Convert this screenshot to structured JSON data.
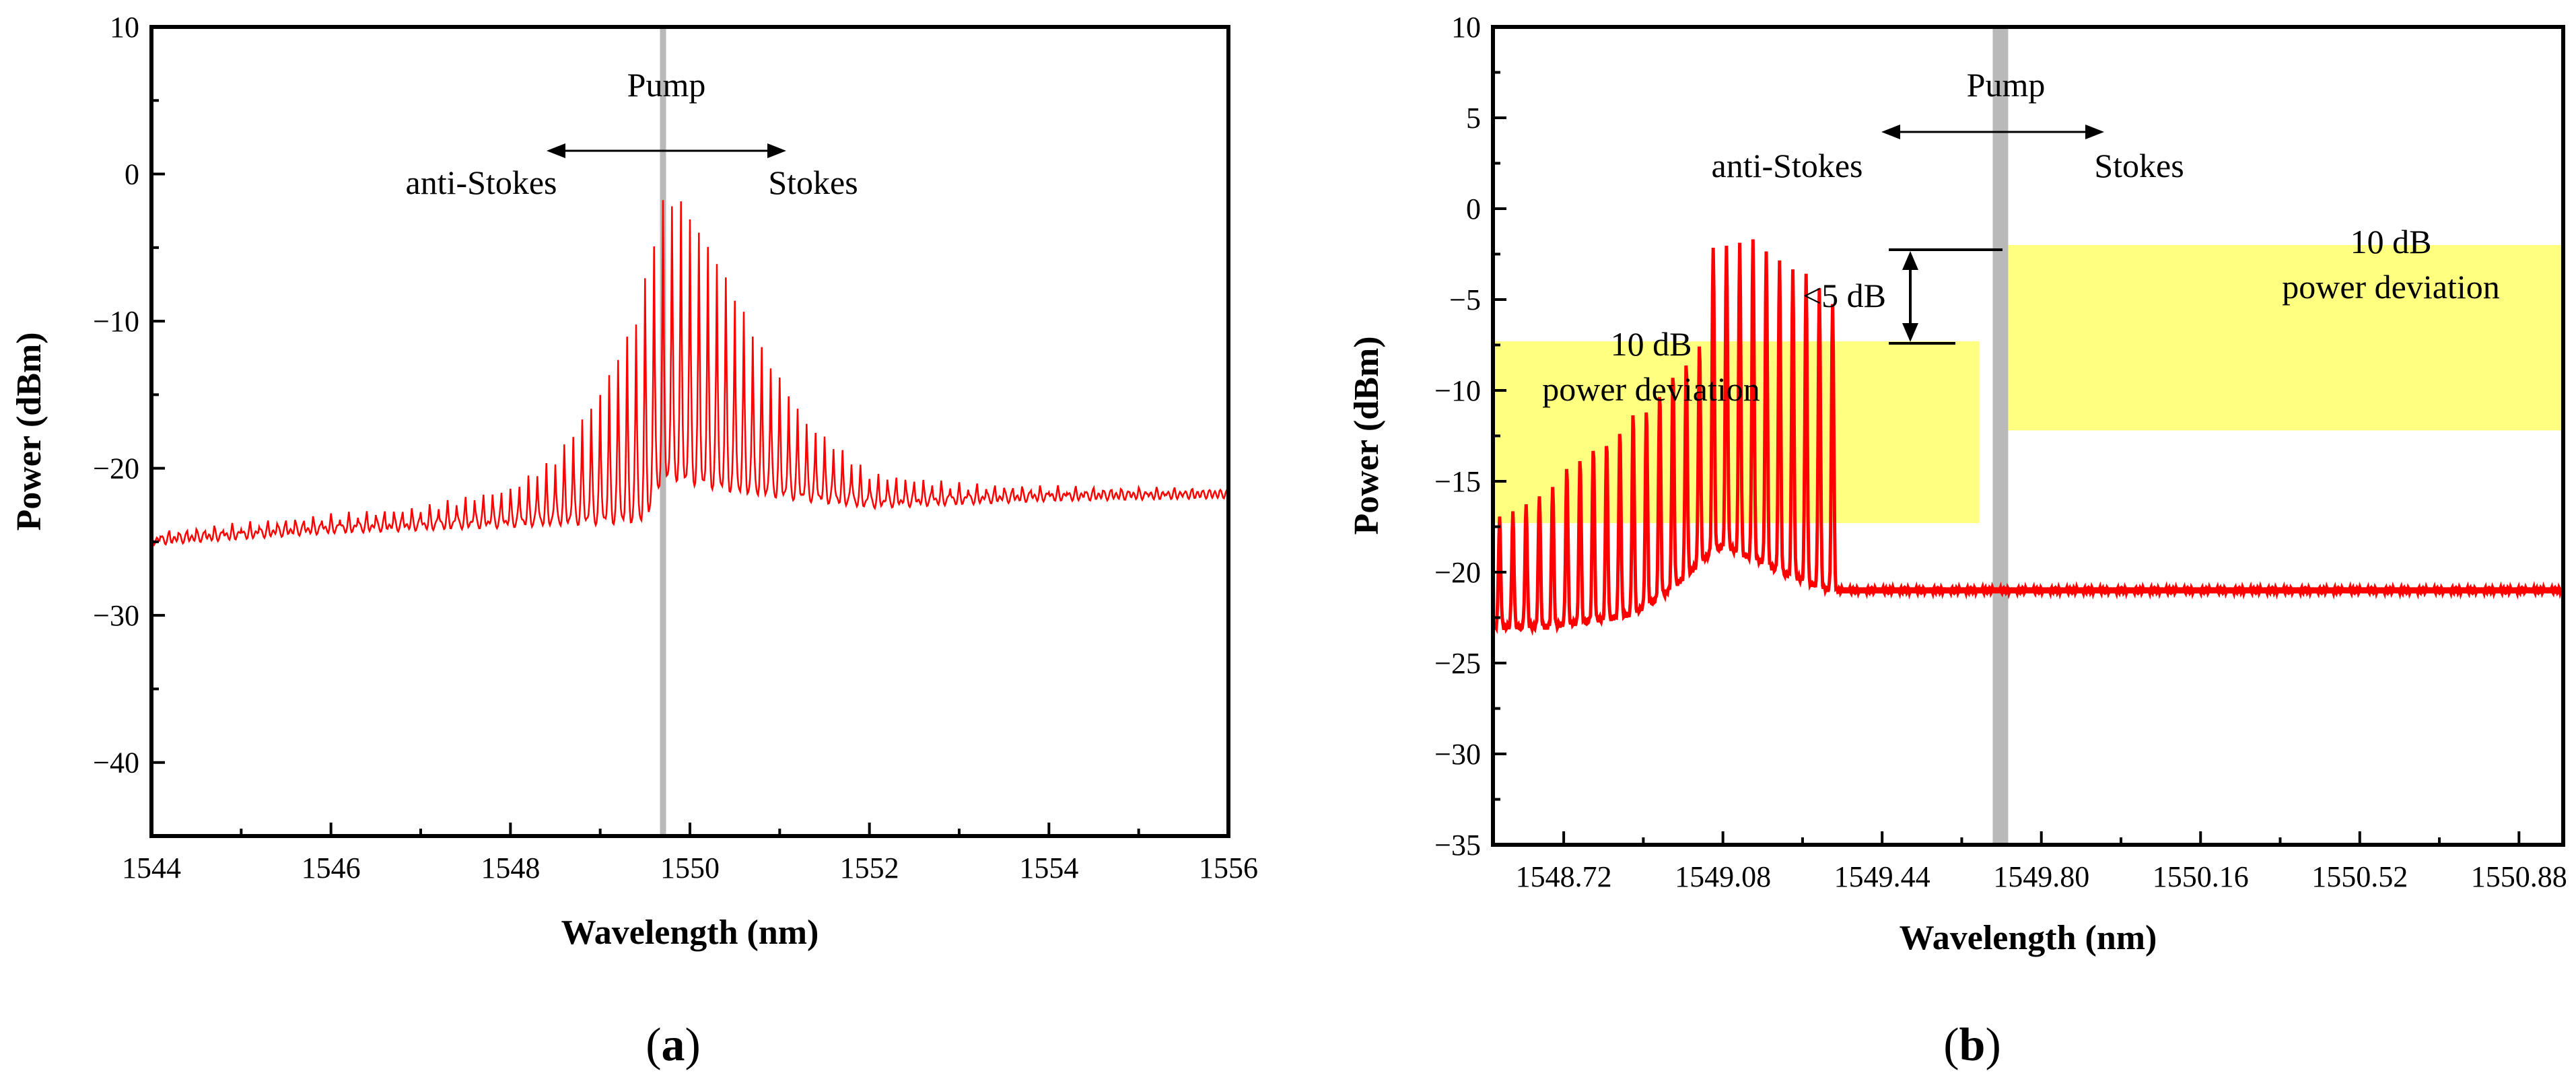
{
  "chart_data": [
    {
      "type": "line",
      "panel_label": "a",
      "xlabel": "Wavelength (nm)",
      "ylabel": "Power (dBm)",
      "xlim": [
        1544,
        1556
      ],
      "ylim": [
        -45,
        10
      ],
      "xticks": [
        1544,
        1546,
        1548,
        1550,
        1552,
        1554,
        1556
      ],
      "xtick_labels": [
        "1544",
        "1546",
        "1548",
        "1550",
        "1552",
        "1554",
        "1556"
      ],
      "yticks": [
        10,
        0,
        -10,
        -20,
        -30,
        -40
      ],
      "ytick_labels": [
        "10",
        "0",
        "−10",
        "−20",
        "−30",
        "−40"
      ],
      "pump_wavelength": 1549.7,
      "series": [
        {
          "name": "optical spectrum",
          "color": "#ff0000",
          "comb_spacing_nm": 0.1,
          "comb_start_nm": 1544.1,
          "comb_end_nm": 1555.9,
          "peak_envelope": {
            "x": [
              1544,
              1546,
              1547,
              1548,
              1548.5,
              1549,
              1549.4,
              1549.7,
              1549.9,
              1550.3,
              1550.8,
              1551.3,
              1552,
              1553,
              1554,
              1555,
              1556
            ],
            "y": [
              -24.5,
              -23.3,
              -22.8,
              -21.5,
              -19.5,
              -15,
              -10,
              -2,
              -2,
              -6,
              -12,
              -17,
              -20.5,
              -21.2,
              -21.4,
              -21.5,
              -21.6
            ]
          },
          "floor_envelope": {
            "x": [
              1544,
              1546,
              1548,
              1549.5,
              1549.7,
              1550.5,
              1552,
              1554,
              1556
            ],
            "y": [
              -25,
              -24.2,
              -23.8,
              -23.5,
              -20.5,
              -21.5,
              -22.5,
              -22,
              -21.8
            ]
          }
        }
      ],
      "annotations": {
        "pump": "Pump",
        "anti_stokes": "anti-Stokes",
        "stokes": "Stokes"
      }
    },
    {
      "type": "line",
      "panel_label": "b",
      "xlabel": "Wavelength (nm)",
      "ylabel": "Power (dBm)",
      "xlim": [
        1548.56,
        1550.98
      ],
      "ylim": [
        -35,
        10
      ],
      "xticks": [
        1548.72,
        1549.08,
        1549.44,
        1549.8,
        1550.16,
        1550.52,
        1550.88
      ],
      "xtick_labels": [
        "1548.72",
        "1549.08",
        "1549.44",
        "1549.80",
        "1550.16",
        "1550.52",
        "1550.88"
      ],
      "yticks": [
        10,
        5,
        0,
        -5,
        -10,
        -15,
        -20,
        -25,
        -30,
        -35
      ],
      "ytick_labels": [
        "10",
        "5",
        "0",
        "−5",
        "−10",
        "−15",
        "−20",
        "−25",
        "−30",
        "−35"
      ],
      "pump_band": [
        1549.69,
        1549.725
      ],
      "series": [
        {
          "name": "optical spectrum",
          "color": "#ff0000",
          "peak_wavelengths": [
            1548.575,
            1548.605,
            1548.635,
            1548.665,
            1548.695,
            1548.727,
            1548.757,
            1548.787,
            1548.817,
            1548.847,
            1548.877,
            1548.907,
            1548.937,
            1548.967,
            1548.997,
            1549.027,
            1549.058,
            1549.088,
            1549.118,
            1549.148,
            1549.178,
            1549.208,
            1549.238,
            1549.268,
            1549.298,
            1549.328
          ],
          "peak_powers": [
            -17,
            -16.8,
            -16.3,
            -15.7,
            -15.2,
            -14.3,
            -13.7,
            -13.0,
            -12.8,
            -12.3,
            -11.3,
            -11.0,
            -10.0,
            -9.0,
            -8.5,
            -7.5,
            -2.0,
            -2.0,
            -2.0,
            -1.8,
            -2.3,
            -2.7,
            -3.3,
            -3.7,
            -4.5,
            -5.2
          ],
          "floor_powers": [
            -23,
            -23,
            -23,
            -23,
            -23,
            -22.8,
            -22.8,
            -22.6,
            -22.6,
            -22.4,
            -22.3,
            -21.8,
            -21.4,
            -20.8,
            -20.2,
            -19.5,
            -18.8,
            -18.5,
            -19,
            -19.2,
            -19.5,
            -20,
            -20.2,
            -20.5,
            -20.8,
            -21
          ]
        }
      ],
      "deviation_regions": [
        {
          "label_line1": "10 dB",
          "label_line2": "power deviation",
          "x": [
            1548.56,
            1549.66
          ],
          "y": [
            -17.3,
            -7.3
          ],
          "color": "#ffff80"
        },
        {
          "label_line1": "10 dB",
          "label_line2": "power deviation",
          "x": [
            1549.725,
            1550.98
          ],
          "y": [
            -12.2,
            -2.0
          ],
          "color": "#ffff80"
        }
      ],
      "annotations": {
        "pump": "Pump",
        "anti_stokes": "anti-Stokes",
        "stokes": "Stokes",
        "difference": "<5 dB"
      }
    }
  ],
  "colors": {
    "trace": "#ff0000",
    "pump": "#b9b9b9",
    "highlight": "#ffff80"
  }
}
